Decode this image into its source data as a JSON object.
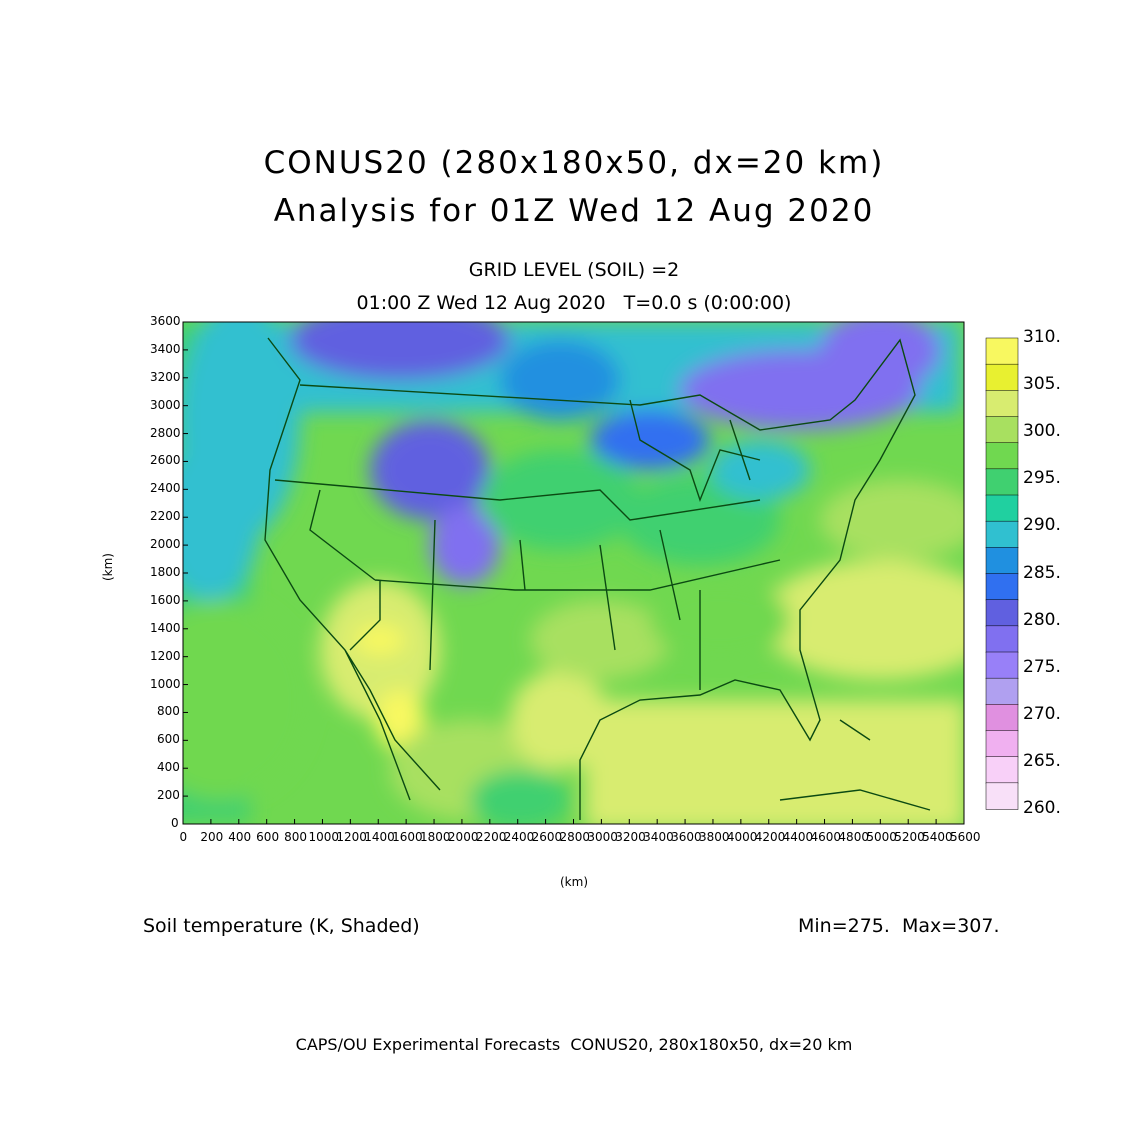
{
  "titles": {
    "line1": "CONUS20 (280x180x50, dx=20 km)",
    "line2": "Analysis for 01Z Wed 12 Aug 2020",
    "sub1": "GRID LEVEL (SOIL) =2",
    "sub2": "01:00 Z Wed 12 Aug 2020   T=0.0 s (0:00:00)"
  },
  "axes": {
    "xlabel": "(km)",
    "ylabel": "(km)",
    "xticks": [
      "0",
      "200",
      "400",
      "600",
      "800",
      "1000",
      "1200",
      "1400",
      "1600",
      "1800",
      "2000",
      "2200",
      "2400",
      "2600",
      "2800",
      "3000",
      "3200",
      "3400",
      "3600",
      "3800",
      "4000",
      "4200",
      "4400",
      "4600",
      "4800",
      "5000",
      "5200",
      "5400",
      "5600"
    ],
    "yticks": [
      "0",
      "200",
      "400",
      "600",
      "800",
      "1000",
      "1200",
      "1400",
      "1600",
      "1800",
      "2000",
      "2200",
      "2400",
      "2600",
      "2800",
      "3000",
      "3200",
      "3400",
      "3600"
    ]
  },
  "colorbar": {
    "labels": [
      "310.",
      "305.",
      "300.",
      "295.",
      "290.",
      "285.",
      "280.",
      "275.",
      "270.",
      "265.",
      "260."
    ],
    "colors": [
      "#f8f860",
      "#e8f030",
      "#d8ec70",
      "#a8e060",
      "#70d850",
      "#40d070",
      "#20d0a0",
      "#30c0d0",
      "#2090e0",
      "#3070f0",
      "#6060e0",
      "#8070f0",
      "#9880f8",
      "#b0a0f0",
      "#e090e0",
      "#f0b0f0",
      "#f8d0f8",
      "#f8e0f8"
    ]
  },
  "caption": {
    "left": "Soil temperature (K, Shaded)",
    "right": "Min=275.  Max=307."
  },
  "footer": "CAPS/OU Experimental Forecasts  CONUS20, 280x180x50, dx=20 km"
}
